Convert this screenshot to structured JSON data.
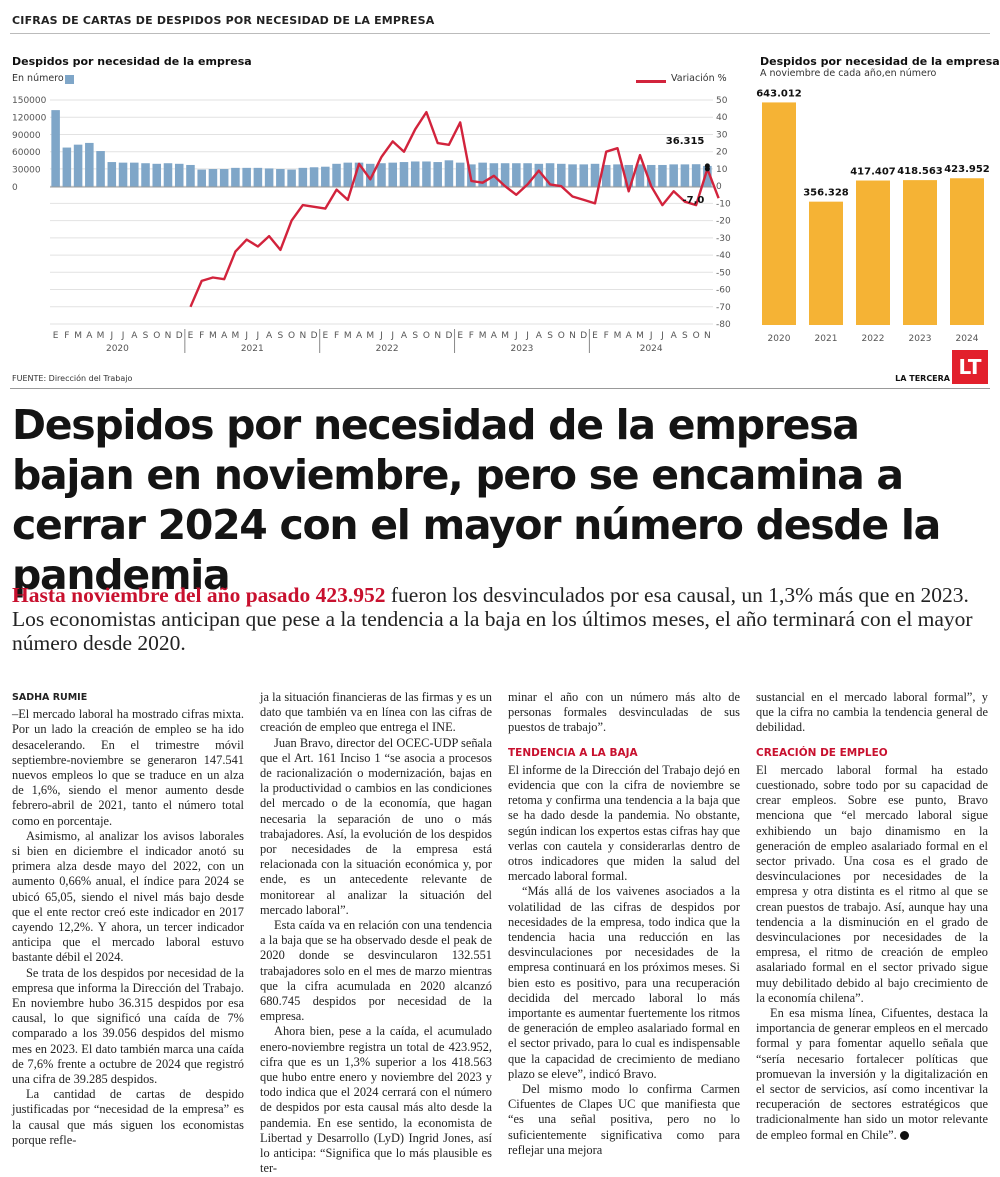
{
  "section_label": "CIFRAS DE CARTAS DE DESPIDOS POR NECESIDAD DE LA EMPRESA",
  "source": "FUENTE: Dirección del Trabajo",
  "brand": "LA TERCERA",
  "logo": "LT",
  "headline": "Despidos por necesidad de la empresa bajan en noviembre, pero se encamina a cerrar 2024 con el mayor número desde la pandemia",
  "lead": {
    "highlight": "Hasta noviembre del año pasado 423.952",
    "text": " fueron los desvinculados por esa causal, un 1,3% más que en 2023. Los economistas anticipan que pese a la tendencia a la baja en los últimos meses, el año terminará con el mayor número desde 2020."
  },
  "byline": "SADHA RUMIE",
  "columns": [
    [
      "–El mercado laboral ha mostrado cifras mixta. Por un lado la creación de empleo se ha ido desacelerando. En el trimestre móvil septiembre-noviembre se generaron 147.541 nuevos empleos lo que se traduce en un alza de 1,6%, siendo el menor aumento desde febrero-abril de 2021, tanto el número total como en porcentaje.",
      "Asimismo, al analizar los avisos laborales si bien en diciembre el indicador anotó su primera alza desde mayo del 2022, con un aumento 0,66% anual, el índice para 2024 se ubicó 65,05, siendo el nivel más bajo desde que el ente rector creó este indicador en 2017 cayendo 12,2%. Y ahora, un tercer indicador anticipa que el mercado laboral estuvo bastante débil el 2024.",
      "Se trata de los despidos por necesidad de la empresa que informa la Dirección del Trabajo. En noviembre hubo 36.315 despidos por esa causal, lo que significó una caída de 7% comparado a los 39.056 despidos del mismo mes en 2023. El dato también marca una caída de 7,6% frente a octubre de 2024 que registró una cifra de 39.285 despidos.",
      "La cantidad de cartas de despido justificadas por “necesidad de la empresa” es la causal que más siguen los economistas porque refle-"
    ],
    [
      "ja la situación financieras de las firmas y es un dato que también va en línea con las cifras de creación de empleo que entrega el INE.",
      "Juan Bravo, director del OCEC-UDP señala que el Art. 161 Inciso 1 “se asocia a procesos de racionalización o modernización, bajas en la productividad o cambios en las condiciones del mercado o de la economía, que hagan necesaria la separación de uno o más trabajadores. Así, la evolución de los despidos por necesidades de la empresa está relacionada con la situación económica y, por ende, es un antecedente relevante de monitorear al analizar la situación del mercado laboral”.",
      "Esta caída va en relación con una tendencia a la baja que se ha observado desde el peak de 2020 donde se desvincularon 132.551 trabajadores solo en el mes de marzo mientras que la cifra acumulada en 2020 alcanzó 680.745 despidos por necesidad de la empresa.",
      "Ahora bien, pese a la caída, el acumulado enero-noviembre registra un total de 423.952, cifra que es un 1,3% superior a los 418.563 que hubo entre enero y noviembre del 2023 y todo indica que el 2024 cerrará con el número de despidos por esta causal más alto desde la pandemia. En ese sentido, la economista de Libertad y Desarrollo (LyD) Ingrid Jones, así lo anticipa: “Significa que lo más plausible es ter-"
    ],
    [
      "minar el año con un número más alto de personas formales desvinculadas de sus puestos de trabajo”.",
      "El informe de la Dirección del Trabajo dejó en evidencia que con la cifra de noviembre se retoma y confirma una tendencia a la baja que se ha dado desde la pandemia. No obstante, según indican los expertos estas cifras hay que verlas con cautela y considerarlas dentro de otros indicadores que miden la salud del mercado laboral formal.",
      "“Más allá de los vaivenes asociados a la volatilidad de las cifras de despidos por necesidades de la empresa, todo indica que la tendencia hacia una reducción en las desvinculaciones por necesidades de la empresa continuará en los próximos meses. Si bien esto es positivo, para una recuperación decidida del mercado laboral lo más importante es aumentar fuertemente los ritmos de generación de empleo asalariado formal en el sector privado, para lo cual es indispensable que la capacidad de crecimiento de mediano plazo se eleve”, indicó Bravo.",
      "Del mismo modo lo confirma Carmen Cifuentes de Clapes UC que manifiesta que “es una señal positiva, pero no lo suficientemente significativa como para reflejar una mejora"
    ],
    [
      "sustancial en el mercado laboral formal”, y que la cifra no cambia la tendencia general de debilidad.",
      "El mercado laboral formal ha estado cuestionado, sobre todo por su capacidad de crear empleos. Sobre ese punto, Bravo menciona que “el mercado laboral sigue exhibiendo un bajo dinamismo en la generación de empleo asalariado formal en el sector privado. Una cosa es el grado de desvinculaciones por necesidades de la empresa y otra distinta es el ritmo al que se crean puestos de trabajo. Así, aunque hay una tendencia a la disminución en el grado de desvinculaciones por necesidades de la empresa, el ritmo de creación de empleo asalariado formal en el sector privado sigue muy debilitado debido al bajo crecimiento de la economía chilena”.",
      "En esa misma línea, Cifuentes, destaca la importancia de generar empleos en el mercado formal y para fomentar aquello señala que “sería necesario fortalecer políticas que promuevan la inversión y la digitalización en el sector de servicios, así como incentivar la recuperación de sectores estratégicos que tradicionalmente han sido un motor relevante de empleo formal en Chile”."
    ]
  ],
  "subheads": [
    "TENDENCIA A LA BAJA",
    "CREACIÓN DE EMPLEO"
  ],
  "colors": {
    "bar_blue": "#7fa6c8",
    "line_red": "#d2233c",
    "bar_orange": "#f5b335",
    "accent": "#c8102e"
  },
  "chart_data": [
    {
      "type": "bar+line",
      "title": "Despidos por necesidad de la empresa",
      "legend": [
        {
          "name": "En número",
          "kind": "bar"
        },
        {
          "name": "Variación %",
          "kind": "line"
        }
      ],
      "month_labels": [
        "E",
        "F",
        "M",
        "A",
        "M",
        "J",
        "J",
        "A",
        "S",
        "O",
        "N",
        "D"
      ],
      "years": [
        "2020",
        "2021",
        "2022",
        "2023",
        "2024"
      ],
      "left_axis_ticks": [
        "150000",
        "120000",
        "90000",
        "60000",
        "30000",
        "0"
      ],
      "right_axis_ticks": [
        "50",
        "40",
        "30",
        "20",
        "10",
        "0",
        "-10",
        "-20",
        "-30",
        "-40",
        "-50",
        "-60",
        "-70",
        "-80"
      ],
      "ylim_left": [
        0,
        150000
      ],
      "ylim_right": [
        -80,
        50
      ],
      "series_bars": {
        "name": "En número",
        "values": [
          132551,
          68000,
          73000,
          76000,
          62000,
          43000,
          42000,
          42000,
          41000,
          40000,
          41000,
          40000,
          38000,
          30000,
          31000,
          31000,
          33000,
          33000,
          33000,
          32000,
          31000,
          30000,
          33000,
          34000,
          35000,
          40000,
          42000,
          42000,
          40000,
          41000,
          42000,
          43000,
          44000,
          44000,
          43000,
          46000,
          42000,
          39000,
          42000,
          41000,
          41000,
          41000,
          41000,
          40000,
          41000,
          40000,
          39056,
          39000,
          40000,
          38000,
          39000,
          38000,
          39000,
          38000,
          38000,
          39000,
          39000,
          39285,
          36315
        ]
      },
      "series_line": {
        "name": "Variación %",
        "values": [
          null,
          null,
          null,
          null,
          null,
          null,
          null,
          null,
          null,
          null,
          null,
          null,
          -70,
          -55,
          -53,
          -54,
          -38,
          -31,
          -35,
          -29,
          -37,
          -20,
          -11,
          -12,
          -13,
          -2,
          -8,
          13,
          4,
          17,
          26,
          20,
          33,
          43,
          25,
          24,
          37,
          3,
          2,
          6,
          0,
          -5,
          1,
          9,
          1,
          0,
          -6,
          -8,
          -10,
          20,
          22,
          -3,
          18,
          0,
          -11,
          -3,
          -9,
          -11,
          10,
          -7.0
        ]
      },
      "annotations": [
        "36.315",
        "-7,0"
      ]
    },
    {
      "type": "bar",
      "title": "Despidos por necesidad de la empresa",
      "subtitle": "A noviembre de cada año,en número",
      "categories": [
        "2020",
        "2021",
        "2022",
        "2023",
        "2024"
      ],
      "values": [
        643012,
        356328,
        417407,
        418563,
        423952
      ],
      "value_labels": [
        "643.012",
        "356.328",
        "417.407",
        "418.563",
        "423.952"
      ],
      "ylim": [
        0,
        650000
      ]
    }
  ]
}
